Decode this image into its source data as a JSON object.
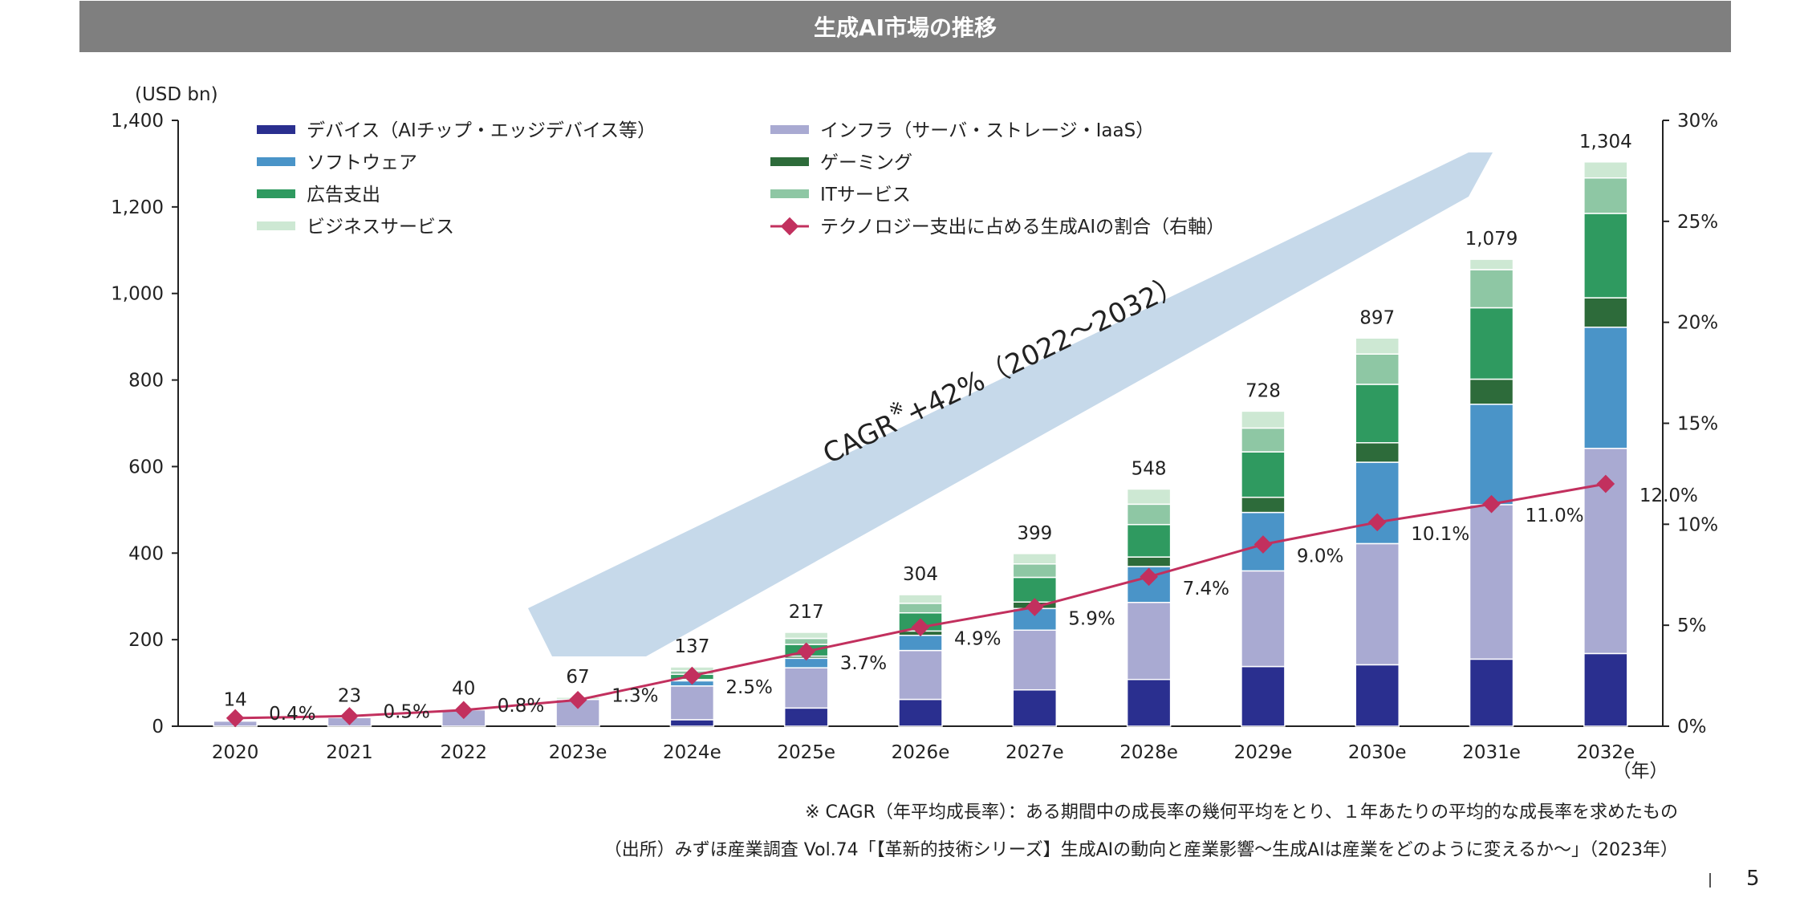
{
  "title": "生成AI市場の推移",
  "footnote": "※ CAGR（年平均成長率）：ある期間中の成長率の幾何平均をとり、１年あたりの平均的な成長率を求めたもの",
  "source": "（出所）みずほ産業調査 Vol.74「【革新的技術シリーズ】生成AIの動向と産業影響～生成AIは産業をどのように変えるか～」（2023年）",
  "page_number": "5",
  "chart_data": {
    "type": "bar",
    "stacked": true,
    "y_unit_label": "(USD bn)",
    "x_unit_label": "（年）",
    "categories": [
      "2020",
      "2021",
      "2022",
      "2023e",
      "2024e",
      "2025e",
      "2026e",
      "2027e",
      "2028e",
      "2029e",
      "2030e",
      "2031e",
      "2032e"
    ],
    "ylim": [
      0,
      1400
    ],
    "yticks": [
      "0",
      "200",
      "400",
      "600",
      "800",
      "1,000",
      "1,200",
      "1,400"
    ],
    "y2lim": [
      0,
      30
    ],
    "y2ticks": [
      "0%",
      "5%",
      "10%",
      "15%",
      "20%",
      "25%",
      "30%"
    ],
    "totals": [
      "14",
      "23",
      "40",
      "67",
      "137",
      "217",
      "304",
      "399",
      "548",
      "728",
      "897",
      "1,079",
      "1,304"
    ],
    "series": [
      {
        "name": "デバイス（AIチップ・エッジデバイス等）",
        "color": "#2a2f8f",
        "values": [
          0,
          0,
          0,
          0,
          15,
          42,
          62,
          84,
          108,
          138,
          142,
          155,
          168
        ]
      },
      {
        "name": "インフラ（サーバ・ストレージ・IaaS）",
        "color": "#a9aad2",
        "values": [
          12,
          20,
          38,
          62,
          78,
          93,
          113,
          138,
          178,
          221,
          280,
          357,
          474
        ]
      },
      {
        "name": "ソフトウェア",
        "color": "#4a94c8",
        "values": [
          0,
          0,
          0,
          0,
          12,
          22,
          35,
          50,
          83,
          135,
          188,
          232,
          280
        ]
      },
      {
        "name": "ゲーミング",
        "color": "#2d6b3a",
        "values": [
          0,
          0,
          0,
          0,
          3,
          5,
          10,
          15,
          22,
          35,
          45,
          58,
          68
        ]
      },
      {
        "name": "広告支出",
        "color": "#2f9a60",
        "values": [
          0,
          0,
          0,
          0,
          12,
          27,
          42,
          57,
          75,
          105,
          135,
          165,
          195
        ]
      },
      {
        "name": "ITサービス",
        "color": "#8ec7a4",
        "values": [
          0,
          0,
          0,
          0,
          8,
          14,
          22,
          31,
          47,
          55,
          70,
          88,
          82
        ]
      },
      {
        "name": "ビジネスサービス",
        "color": "#cde8d3",
        "values": [
          2,
          3,
          2,
          5,
          9,
          14,
          20,
          24,
          35,
          39,
          37,
          24,
          37
        ]
      }
    ],
    "line": {
      "name": "テクノロジー支出に占める生成AIの割合（右軸）",
      "color": "#c2305e",
      "values": [
        0.4,
        0.5,
        0.8,
        1.3,
        2.5,
        3.7,
        4.9,
        5.9,
        7.4,
        9.0,
        10.1,
        11.0,
        12.0
      ],
      "labels": [
        "0.4%",
        "0.5%",
        "0.8%",
        "1.3%",
        "2.5%",
        "3.7%",
        "4.9%",
        "5.9%",
        "7.4%",
        "9.0%",
        "10.1%",
        "11.0%",
        "12.0%"
      ]
    },
    "annotation": {
      "label": "CAGR",
      "mark": "※",
      "text": "+42%（2022～2032）"
    }
  }
}
